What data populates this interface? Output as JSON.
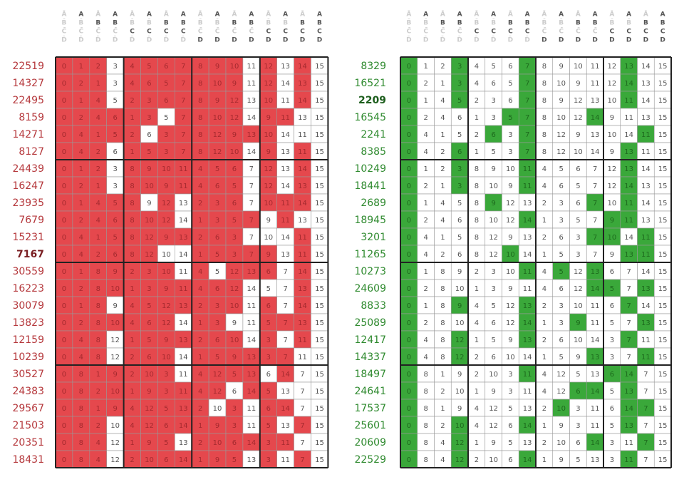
{
  "grids": [
    {
      "header": [
        [
          "Ā",
          "B̄",
          "C̄",
          "D̄"
        ],
        [
          "A",
          "B̄",
          "C̄",
          "D̄"
        ],
        [
          "Ā",
          "B",
          "C̄",
          "D̄"
        ],
        [
          "A",
          "B",
          "C̄",
          "D̄"
        ],
        [
          "Ā",
          "B̄",
          "C",
          "D̄"
        ],
        [
          "A",
          "B̄",
          "C",
          "D̄"
        ],
        [
          "Ā",
          "B",
          "C",
          "D̄"
        ],
        [
          "A",
          "B",
          "C",
          "D̄"
        ],
        [
          "Ā",
          "B̄",
          "C̄",
          "D"
        ],
        [
          "A",
          "B̄",
          "C̄",
          "D"
        ],
        [
          "Ā",
          "B",
          "C̄",
          "D"
        ],
        [
          "A",
          "B",
          "C̄",
          "D"
        ],
        [
          "Ā",
          "B̄",
          "C",
          "D"
        ],
        [
          "A",
          "B̄",
          "C",
          "D"
        ],
        [
          "Ā",
          "B",
          "C",
          "D"
        ],
        [
          "A",
          "B",
          "C",
          "D"
        ]
      ],
      "rows": [
        {
          "label": 22519,
          "cells": [
            0,
            1,
            2,
            3,
            4,
            5,
            6,
            7,
            8,
            9,
            10,
            11,
            12,
            13,
            14,
            15
          ]
        },
        {
          "label": 14327,
          "cells": [
            0,
            2,
            1,
            3,
            4,
            6,
            5,
            7,
            8,
            10,
            9,
            11,
            12,
            14,
            13,
            15
          ]
        },
        {
          "label": 22495,
          "cells": [
            0,
            1,
            4,
            5,
            2,
            3,
            6,
            7,
            8,
            9,
            12,
            13,
            10,
            11,
            14,
            15
          ]
        },
        {
          "label": 8159,
          "cells": [
            0,
            2,
            4,
            6,
            1,
            3,
            5,
            7,
            8,
            10,
            12,
            14,
            9,
            11,
            13,
            15
          ]
        },
        {
          "label": 14271,
          "cells": [
            0,
            4,
            1,
            5,
            2,
            6,
            3,
            7,
            8,
            12,
            9,
            13,
            10,
            14,
            11,
            15
          ]
        },
        {
          "label": 8127,
          "cells": [
            0,
            4,
            2,
            6,
            1,
            5,
            3,
            7,
            8,
            12,
            10,
            14,
            9,
            13,
            11,
            15
          ]
        },
        {
          "label": 24439,
          "cells": [
            0,
            1,
            2,
            3,
            8,
            9,
            10,
            11,
            4,
            5,
            6,
            7,
            12,
            13,
            14,
            15
          ]
        },
        {
          "label": 16247,
          "cells": [
            0,
            2,
            1,
            3,
            8,
            10,
            9,
            11,
            4,
            6,
            5,
            7,
            12,
            14,
            13,
            15
          ]
        },
        {
          "label": 23935,
          "cells": [
            0,
            1,
            4,
            5,
            8,
            9,
            12,
            13,
            2,
            3,
            6,
            7,
            10,
            11,
            14,
            15
          ]
        },
        {
          "label": 7679,
          "cells": [
            0,
            2,
            4,
            6,
            8,
            10,
            12,
            14,
            1,
            3,
            5,
            7,
            9,
            11,
            13,
            15
          ]
        },
        {
          "label": 15231,
          "cells": [
            0,
            4,
            1,
            5,
            8,
            12,
            9,
            13,
            2,
            6,
            3,
            7,
            10,
            14,
            11,
            15
          ]
        },
        {
          "label": 7167,
          "cells": [
            0,
            4,
            2,
            6,
            8,
            12,
            10,
            14,
            1,
            5,
            3,
            7,
            9,
            13,
            11,
            15
          ],
          "bold": true
        },
        {
          "label": 30559,
          "cells": [
            0,
            1,
            8,
            9,
            2,
            3,
            10,
            11,
            4,
            5,
            12,
            13,
            6,
            7,
            14,
            15
          ]
        },
        {
          "label": 16223,
          "cells": [
            0,
            2,
            8,
            10,
            1,
            3,
            9,
            11,
            4,
            6,
            12,
            14,
            5,
            7,
            13,
            15
          ]
        },
        {
          "label": 30079,
          "cells": [
            0,
            1,
            8,
            9,
            4,
            5,
            12,
            13,
            2,
            3,
            10,
            11,
            6,
            7,
            14,
            15
          ]
        },
        {
          "label": 13823,
          "cells": [
            0,
            2,
            8,
            10,
            4,
            6,
            12,
            14,
            1,
            3,
            9,
            11,
            5,
            7,
            13,
            15
          ]
        },
        {
          "label": 12159,
          "cells": [
            0,
            4,
            8,
            12,
            1,
            5,
            9,
            13,
            2,
            6,
            10,
            14,
            3,
            7,
            11,
            15
          ]
        },
        {
          "label": 10239,
          "cells": [
            0,
            4,
            8,
            12,
            2,
            6,
            10,
            14,
            1,
            5,
            9,
            13,
            3,
            7,
            11,
            15
          ]
        },
        {
          "label": 30527,
          "cells": [
            0,
            8,
            1,
            9,
            2,
            10,
            3,
            11,
            4,
            12,
            5,
            13,
            6,
            14,
            7,
            15
          ]
        },
        {
          "label": 24383,
          "cells": [
            0,
            8,
            2,
            10,
            1,
            9,
            3,
            11,
            4,
            12,
            6,
            14,
            5,
            13,
            7,
            15
          ]
        },
        {
          "label": 29567,
          "cells": [
            0,
            8,
            1,
            9,
            4,
            12,
            5,
            13,
            2,
            10,
            3,
            11,
            6,
            14,
            7,
            15
          ]
        },
        {
          "label": 21503,
          "cells": [
            0,
            8,
            2,
            10,
            4,
            12,
            6,
            14,
            1,
            9,
            3,
            11,
            5,
            13,
            7,
            15
          ]
        },
        {
          "label": 20351,
          "cells": [
            0,
            8,
            4,
            12,
            1,
            9,
            5,
            13,
            2,
            10,
            6,
            14,
            3,
            11,
            7,
            15
          ]
        },
        {
          "label": 18431,
          "cells": [
            0,
            8,
            4,
            12,
            2,
            10,
            6,
            14,
            1,
            9,
            5,
            13,
            3,
            11,
            7,
            15
          ]
        }
      ]
    },
    {
      "header": [
        [
          "Ā",
          "B̄",
          "C̄",
          "D̄"
        ],
        [
          "A",
          "B̄",
          "C̄",
          "D̄"
        ],
        [
          "Ā",
          "B",
          "C̄",
          "D̄"
        ],
        [
          "A",
          "B",
          "C̄",
          "D̄"
        ],
        [
          "Ā",
          "B̄",
          "C",
          "D̄"
        ],
        [
          "A",
          "B̄",
          "C",
          "D̄"
        ],
        [
          "Ā",
          "B",
          "C",
          "D̄"
        ],
        [
          "A",
          "B",
          "C",
          "D̄"
        ],
        [
          "Ā",
          "B̄",
          "C̄",
          "D"
        ],
        [
          "A",
          "B̄",
          "C̄",
          "D"
        ],
        [
          "Ā",
          "B",
          "C̄",
          "D"
        ],
        [
          "A",
          "B",
          "C̄",
          "D"
        ],
        [
          "Ā",
          "B̄",
          "C",
          "D"
        ],
        [
          "A",
          "B̄",
          "C",
          "D"
        ],
        [
          "Ā",
          "B",
          "C",
          "D"
        ],
        [
          "A",
          "B",
          "C",
          "D"
        ]
      ],
      "rows": [
        {
          "label": 8329,
          "cells": [
            0,
            1,
            2,
            3,
            4,
            5,
            6,
            7,
            8,
            9,
            10,
            11,
            12,
            13,
            14,
            15
          ]
        },
        {
          "label": 16521,
          "cells": [
            0,
            2,
            1,
            3,
            4,
            6,
            5,
            7,
            8,
            10,
            9,
            11,
            12,
            14,
            13,
            15
          ]
        },
        {
          "label": 2209,
          "cells": [
            0,
            1,
            4,
            5,
            2,
            3,
            6,
            7,
            8,
            9,
            12,
            13,
            10,
            11,
            14,
            15
          ],
          "bold": true
        },
        {
          "label": 16545,
          "cells": [
            0,
            2,
            4,
            6,
            1,
            3,
            5,
            7,
            8,
            10,
            12,
            14,
            9,
            11,
            13,
            15
          ]
        },
        {
          "label": 2241,
          "cells": [
            0,
            4,
            1,
            5,
            2,
            6,
            3,
            7,
            8,
            12,
            9,
            13,
            10,
            14,
            11,
            15
          ]
        },
        {
          "label": 8385,
          "cells": [
            0,
            4,
            2,
            6,
            1,
            5,
            3,
            7,
            8,
            12,
            10,
            14,
            9,
            13,
            11,
            15
          ]
        },
        {
          "label": 10249,
          "cells": [
            0,
            1,
            2,
            3,
            8,
            9,
            10,
            11,
            4,
            5,
            6,
            7,
            12,
            13,
            14,
            15
          ]
        },
        {
          "label": 18441,
          "cells": [
            0,
            2,
            1,
            3,
            8,
            10,
            9,
            11,
            4,
            6,
            5,
            7,
            12,
            14,
            13,
            15
          ]
        },
        {
          "label": 2689,
          "cells": [
            0,
            1,
            4,
            5,
            8,
            9,
            12,
            13,
            2,
            3,
            6,
            7,
            10,
            11,
            14,
            15
          ]
        },
        {
          "label": 18945,
          "cells": [
            0,
            2,
            4,
            6,
            8,
            10,
            12,
            14,
            1,
            3,
            5,
            7,
            9,
            11,
            13,
            15
          ]
        },
        {
          "label": 3201,
          "cells": [
            0,
            4,
            1,
            5,
            8,
            12,
            9,
            13,
            2,
            6,
            3,
            7,
            10,
            14,
            11,
            15
          ]
        },
        {
          "label": 11265,
          "cells": [
            0,
            4,
            2,
            6,
            8,
            12,
            10,
            14,
            1,
            5,
            3,
            7,
            9,
            13,
            11,
            15
          ]
        },
        {
          "label": 10273,
          "cells": [
            0,
            1,
            8,
            9,
            2,
            3,
            10,
            11,
            4,
            5,
            12,
            13,
            6,
            7,
            14,
            15
          ]
        },
        {
          "label": 24609,
          "cells": [
            0,
            2,
            8,
            10,
            1,
            3,
            9,
            11,
            4,
            6,
            12,
            14,
            5,
            7,
            13,
            15
          ]
        },
        {
          "label": 8833,
          "cells": [
            0,
            1,
            8,
            9,
            4,
            5,
            12,
            13,
            2,
            3,
            10,
            11,
            6,
            7,
            14,
            15
          ]
        },
        {
          "label": 25089,
          "cells": [
            0,
            2,
            8,
            10,
            4,
            6,
            12,
            14,
            1,
            3,
            9,
            11,
            5,
            7,
            13,
            15
          ]
        },
        {
          "label": 12417,
          "cells": [
            0,
            4,
            8,
            12,
            1,
            5,
            9,
            13,
            2,
            6,
            10,
            14,
            3,
            7,
            11,
            15
          ]
        },
        {
          "label": 14337,
          "cells": [
            0,
            4,
            8,
            12,
            2,
            6,
            10,
            14,
            1,
            5,
            9,
            13,
            3,
            7,
            11,
            15
          ]
        },
        {
          "label": 18497,
          "cells": [
            0,
            8,
            1,
            9,
            2,
            10,
            3,
            11,
            4,
            12,
            5,
            13,
            6,
            14,
            7,
            15
          ]
        },
        {
          "label": 24641,
          "cells": [
            0,
            8,
            2,
            10,
            1,
            9,
            3,
            11,
            4,
            12,
            6,
            14,
            5,
            13,
            7,
            15
          ]
        },
        {
          "label": 17537,
          "cells": [
            0,
            8,
            1,
            9,
            4,
            12,
            5,
            13,
            2,
            10,
            3,
            11,
            6,
            14,
            7,
            15
          ]
        },
        {
          "label": 25601,
          "cells": [
            0,
            8,
            2,
            10,
            4,
            12,
            6,
            14,
            1,
            9,
            3,
            11,
            5,
            13,
            7,
            15
          ]
        },
        {
          "label": 20609,
          "cells": [
            0,
            8,
            4,
            12,
            1,
            9,
            5,
            13,
            2,
            10,
            6,
            14,
            3,
            11,
            7,
            15
          ]
        },
        {
          "label": 22529,
          "cells": [
            0,
            8,
            4,
            12,
            2,
            10,
            6,
            14,
            1,
            9,
            5,
            13,
            3,
            11,
            7,
            15
          ]
        }
      ]
    }
  ]
}
